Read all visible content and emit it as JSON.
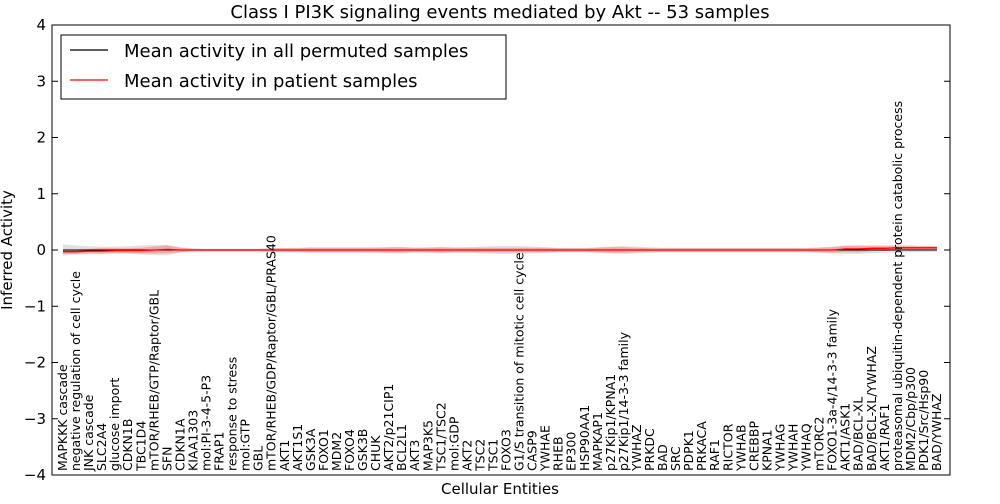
{
  "chart_data": {
    "type": "line",
    "title": "Class I PI3K signaling events mediated by Akt -- 53 samples",
    "xlabel": "Cellular Entities",
    "ylabel": "Inferred Activity",
    "ylim": [
      -4,
      4
    ],
    "yticks": [
      -4,
      -3,
      -2,
      -1,
      0,
      1,
      2,
      3,
      4
    ],
    "ytick_labels": [
      "−4",
      "−3",
      "−2",
      "−1",
      "0",
      "1",
      "2",
      "3",
      "4"
    ],
    "grid": false,
    "legend_position": "top-left",
    "categories": [
      "MAPKKK cascade",
      "negative regulation of cell cycle",
      "JNK cascade",
      "SLC2A4",
      "glucose import",
      "CDKN1B",
      "TBC1D4",
      "mTOR/RHEB/GTP/Raptor/GBL",
      "SFN",
      "CDKN1A",
      "KIAA1303",
      "mol:PI-3-4-5-P3",
      "FRAP1",
      "response to stress",
      "mol:GTP",
      "GBL",
      "mTOR/RHEB/GDP/Raptor/GBL/PRAS40",
      "AKT1",
      "AKT1S1",
      "GSK3A",
      "FOXO1",
      "MDM2",
      "FOXO4",
      "GSK3B",
      "CHUK",
      "AKT2/p21CIP1",
      "BCL2L1",
      "AKT3",
      "MAP3K5",
      "TSC1/TSC2",
      "mol:GDP",
      "AKT2",
      "TSC2",
      "TSC1",
      "FOXO3",
      "G1/S transition of mitotic cell cycle",
      "CASP9",
      "YWHAE",
      "RHEB",
      "EP300",
      "HSP90AA1",
      "MAPKAP1",
      "p27Kip1/KPNA1",
      "p27Kip1/14-3-3 family",
      "YWHAZ",
      "PRKDC",
      "BAD",
      "SRC",
      "PDPK1",
      "PRKACA",
      "RAF1",
      "RICTOR",
      "YWHAB",
      "CREBBP",
      "KPNA1",
      "YWHAG",
      "YWHAH",
      "YWHAQ",
      "mTORC2",
      "FOXO1-3a-4/14-3-3 family",
      "AKT1/ASK1",
      "BAD/BCL-XL",
      "BAD/BCL-XL/YWHAZ",
      "AKT1/RAF1",
      "proteasomal ubiquitin-dependent protein catabolic process",
      "MDM2/Cbp/p300",
      "PDK1/Src/Hsp90",
      "BAD/YWHAZ"
    ],
    "series": [
      {
        "name": "Mean activity in all permuted samples",
        "color": "#000000",
        "band_color": "#c8c8c8",
        "values": [
          0,
          0,
          0,
          0,
          0,
          0,
          0,
          0,
          0,
          0,
          0,
          0,
          0,
          0,
          0,
          0,
          0,
          0,
          0,
          0,
          0,
          0,
          0,
          0,
          0,
          0,
          0,
          0,
          0,
          0,
          0,
          0,
          0,
          0,
          0,
          0,
          0,
          0,
          0,
          0,
          0,
          0,
          0,
          0,
          0,
          0,
          0,
          0,
          0,
          0,
          0,
          0,
          0,
          0,
          0,
          0,
          0,
          0,
          0,
          0,
          0,
          0,
          0,
          0,
          0,
          0,
          0,
          0
        ],
        "spread": [
          0.1,
          0.08,
          0.07,
          0.06,
          0.06,
          0.07,
          0.08,
          0.09,
          0.09,
          0.05,
          0.03,
          0.02,
          0.02,
          0.02,
          0.02,
          0.02,
          0.03,
          0.04,
          0.04,
          0.05,
          0.05,
          0.05,
          0.05,
          0.05,
          0.05,
          0.05,
          0.05,
          0.04,
          0.05,
          0.05,
          0.05,
          0.05,
          0.06,
          0.07,
          0.07,
          0.07,
          0.06,
          0.05,
          0.04,
          0.04,
          0.04,
          0.05,
          0.06,
          0.07,
          0.06,
          0.05,
          0.04,
          0.04,
          0.04,
          0.04,
          0.04,
          0.04,
          0.04,
          0.04,
          0.04,
          0.04,
          0.04,
          0.04,
          0.05,
          0.06,
          0.07,
          0.07,
          0.06,
          0.05,
          0.05,
          0.04,
          0.04,
          0.03
        ]
      },
      {
        "name": "Mean activity in patient samples",
        "color": "#ff0000",
        "band_color": "#ff8080",
        "values": [
          -0.03,
          -0.03,
          -0.02,
          -0.02,
          -0.01,
          -0.01,
          -0.01,
          0.0,
          0.01,
          0.0,
          0.0,
          0.0,
          0.0,
          0.0,
          0.0,
          0.0,
          0.0,
          0.0,
          0.0,
          0.0,
          0.0,
          0.0,
          0.0,
          0.0,
          0.0,
          0.0,
          0.0,
          0.0,
          0.0,
          0.0,
          0.0,
          0.0,
          0.0,
          0.0,
          0.0,
          0.0,
          0.0,
          0.0,
          0.0,
          0.0,
          0.0,
          0.0,
          0.0,
          0.0,
          0.0,
          0.0,
          0.0,
          0.0,
          0.0,
          0.0,
          0.0,
          0.0,
          0.0,
          0.0,
          0.0,
          0.0,
          0.0,
          0.0,
          0.0,
          0.0,
          0.02,
          0.02,
          0.03,
          0.03,
          0.04,
          0.04,
          0.04,
          0.04
        ],
        "spread": [
          0.04,
          0.04,
          0.04,
          0.05,
          0.04,
          0.04,
          0.05,
          0.06,
          0.07,
          0.04,
          0.02,
          0.02,
          0.02,
          0.02,
          0.02,
          0.02,
          0.03,
          0.03,
          0.03,
          0.04,
          0.04,
          0.04,
          0.04,
          0.04,
          0.04,
          0.05,
          0.05,
          0.04,
          0.04,
          0.05,
          0.04,
          0.04,
          0.04,
          0.04,
          0.04,
          0.04,
          0.04,
          0.04,
          0.03,
          0.03,
          0.03,
          0.04,
          0.05,
          0.05,
          0.04,
          0.03,
          0.03,
          0.03,
          0.03,
          0.03,
          0.03,
          0.03,
          0.03,
          0.03,
          0.03,
          0.03,
          0.03,
          0.03,
          0.04,
          0.05,
          0.06,
          0.06,
          0.05,
          0.05,
          0.04,
          0.04,
          0.03,
          0.03
        ]
      }
    ]
  }
}
